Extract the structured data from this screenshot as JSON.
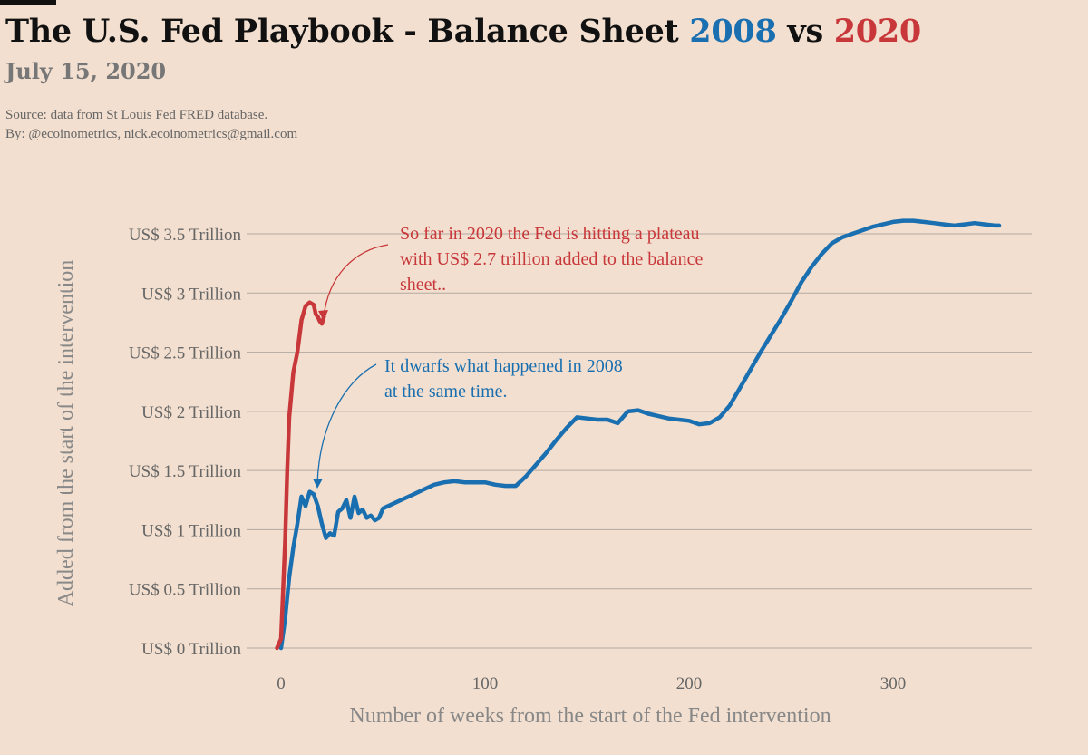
{
  "title": {
    "prefix": "The U.S. Fed Playbook - Balance Sheet ",
    "year_a": "2008",
    "mid": " vs ",
    "year_b": "2020"
  },
  "subtitle": "July 15, 2020",
  "source_line": "Source: data from  St Louis Fed FRED database.",
  "by_line": "By: @ecoinometrics, nick.ecoinometrics@gmail.com",
  "colors": {
    "background": "#f2dfcf",
    "series_2008": "#1a6fb0",
    "series_2020": "#c8373a",
    "grid": "#b3aaa2",
    "text_muted": "#666666"
  },
  "chart_data": {
    "type": "line",
    "title": "The U.S. Fed Playbook - Balance Sheet 2008 vs 2020",
    "xlabel": "Number of weeks from the start of the Fed intervention",
    "ylabel": "Added from the start of the intervention",
    "xlim": [
      -3,
      370
    ],
    "ylim": [
      0,
      3.5
    ],
    "grid": "horizontal",
    "x_ticks": [
      {
        "value": 0,
        "label": "0"
      },
      {
        "value": 100,
        "label": "100"
      },
      {
        "value": 200,
        "label": "200"
      },
      {
        "value": 300,
        "label": "300"
      }
    ],
    "y_ticks": [
      {
        "value": 0,
        "label": "US$ 0 Trillion"
      },
      {
        "value": 0.5,
        "label": "US$ 0.5 Trillion"
      },
      {
        "value": 1,
        "label": "US$ 1 Trillion"
      },
      {
        "value": 1.5,
        "label": "US$ 1.5 Trillion"
      },
      {
        "value": 2,
        "label": "US$ 2 Trillion"
      },
      {
        "value": 2.5,
        "label": "US$ 2.5 Trillion"
      },
      {
        "value": 3,
        "label": "US$ 3 Trillion"
      },
      {
        "value": 3.5,
        "label": "US$ 3.5 Trillion"
      }
    ],
    "series": [
      {
        "name": "2008",
        "color": "#1a6fb0",
        "x": [
          0,
          2,
          4,
          6,
          8,
          10,
          12,
          14,
          16,
          18,
          20,
          22,
          24,
          26,
          28,
          30,
          32,
          34,
          36,
          38,
          40,
          42,
          44,
          46,
          48,
          50,
          55,
          60,
          65,
          70,
          75,
          80,
          85,
          90,
          95,
          100,
          105,
          110,
          115,
          120,
          125,
          130,
          135,
          140,
          145,
          150,
          155,
          160,
          165,
          170,
          175,
          180,
          185,
          190,
          195,
          200,
          205,
          210,
          215,
          220,
          225,
          230,
          235,
          240,
          245,
          250,
          255,
          260,
          265,
          270,
          275,
          280,
          285,
          290,
          295,
          300,
          305,
          310,
          315,
          320,
          325,
          330,
          335,
          340,
          345,
          350,
          352
        ],
        "values": [
          0.0,
          0.25,
          0.6,
          0.85,
          1.05,
          1.28,
          1.2,
          1.32,
          1.3,
          1.2,
          1.05,
          0.93,
          0.97,
          0.95,
          1.15,
          1.18,
          1.25,
          1.1,
          1.28,
          1.14,
          1.17,
          1.1,
          1.12,
          1.08,
          1.1,
          1.18,
          1.22,
          1.26,
          1.3,
          1.34,
          1.38,
          1.4,
          1.41,
          1.4,
          1.4,
          1.4,
          1.38,
          1.37,
          1.37,
          1.45,
          1.55,
          1.65,
          1.76,
          1.86,
          1.95,
          1.94,
          1.93,
          1.93,
          1.9,
          2.0,
          2.01,
          1.98,
          1.96,
          1.94,
          1.93,
          1.92,
          1.89,
          1.9,
          1.95,
          2.05,
          2.2,
          2.35,
          2.5,
          2.64,
          2.78,
          2.93,
          3.09,
          3.22,
          3.33,
          3.42,
          3.47,
          3.5,
          3.53,
          3.56,
          3.58,
          3.6,
          3.61,
          3.61,
          3.6,
          3.59,
          3.58,
          3.57,
          3.58,
          3.59,
          3.58,
          3.57,
          3.57
        ]
      },
      {
        "name": "2020",
        "color": "#c8373a",
        "x": [
          -2,
          0,
          2,
          3,
          4,
          6,
          8,
          10,
          12,
          14,
          16,
          17,
          18,
          19,
          20,
          21
        ],
        "values": [
          0.0,
          0.08,
          0.9,
          1.5,
          1.95,
          2.33,
          2.5,
          2.77,
          2.89,
          2.92,
          2.9,
          2.82,
          2.8,
          2.76,
          2.74,
          2.8
        ]
      }
    ],
    "annotations": [
      {
        "series": "2020",
        "color": "#c8373a",
        "lines": [
          "So far in 2020 the Fed is hitting a plateau",
          "with US$ 2.7 trillion added to the balance",
          "sheet.."
        ]
      },
      {
        "series": "2008",
        "color": "#1a6fb0",
        "lines": [
          "It dwarfs what happened in 2008",
          "at the same time."
        ]
      }
    ]
  }
}
